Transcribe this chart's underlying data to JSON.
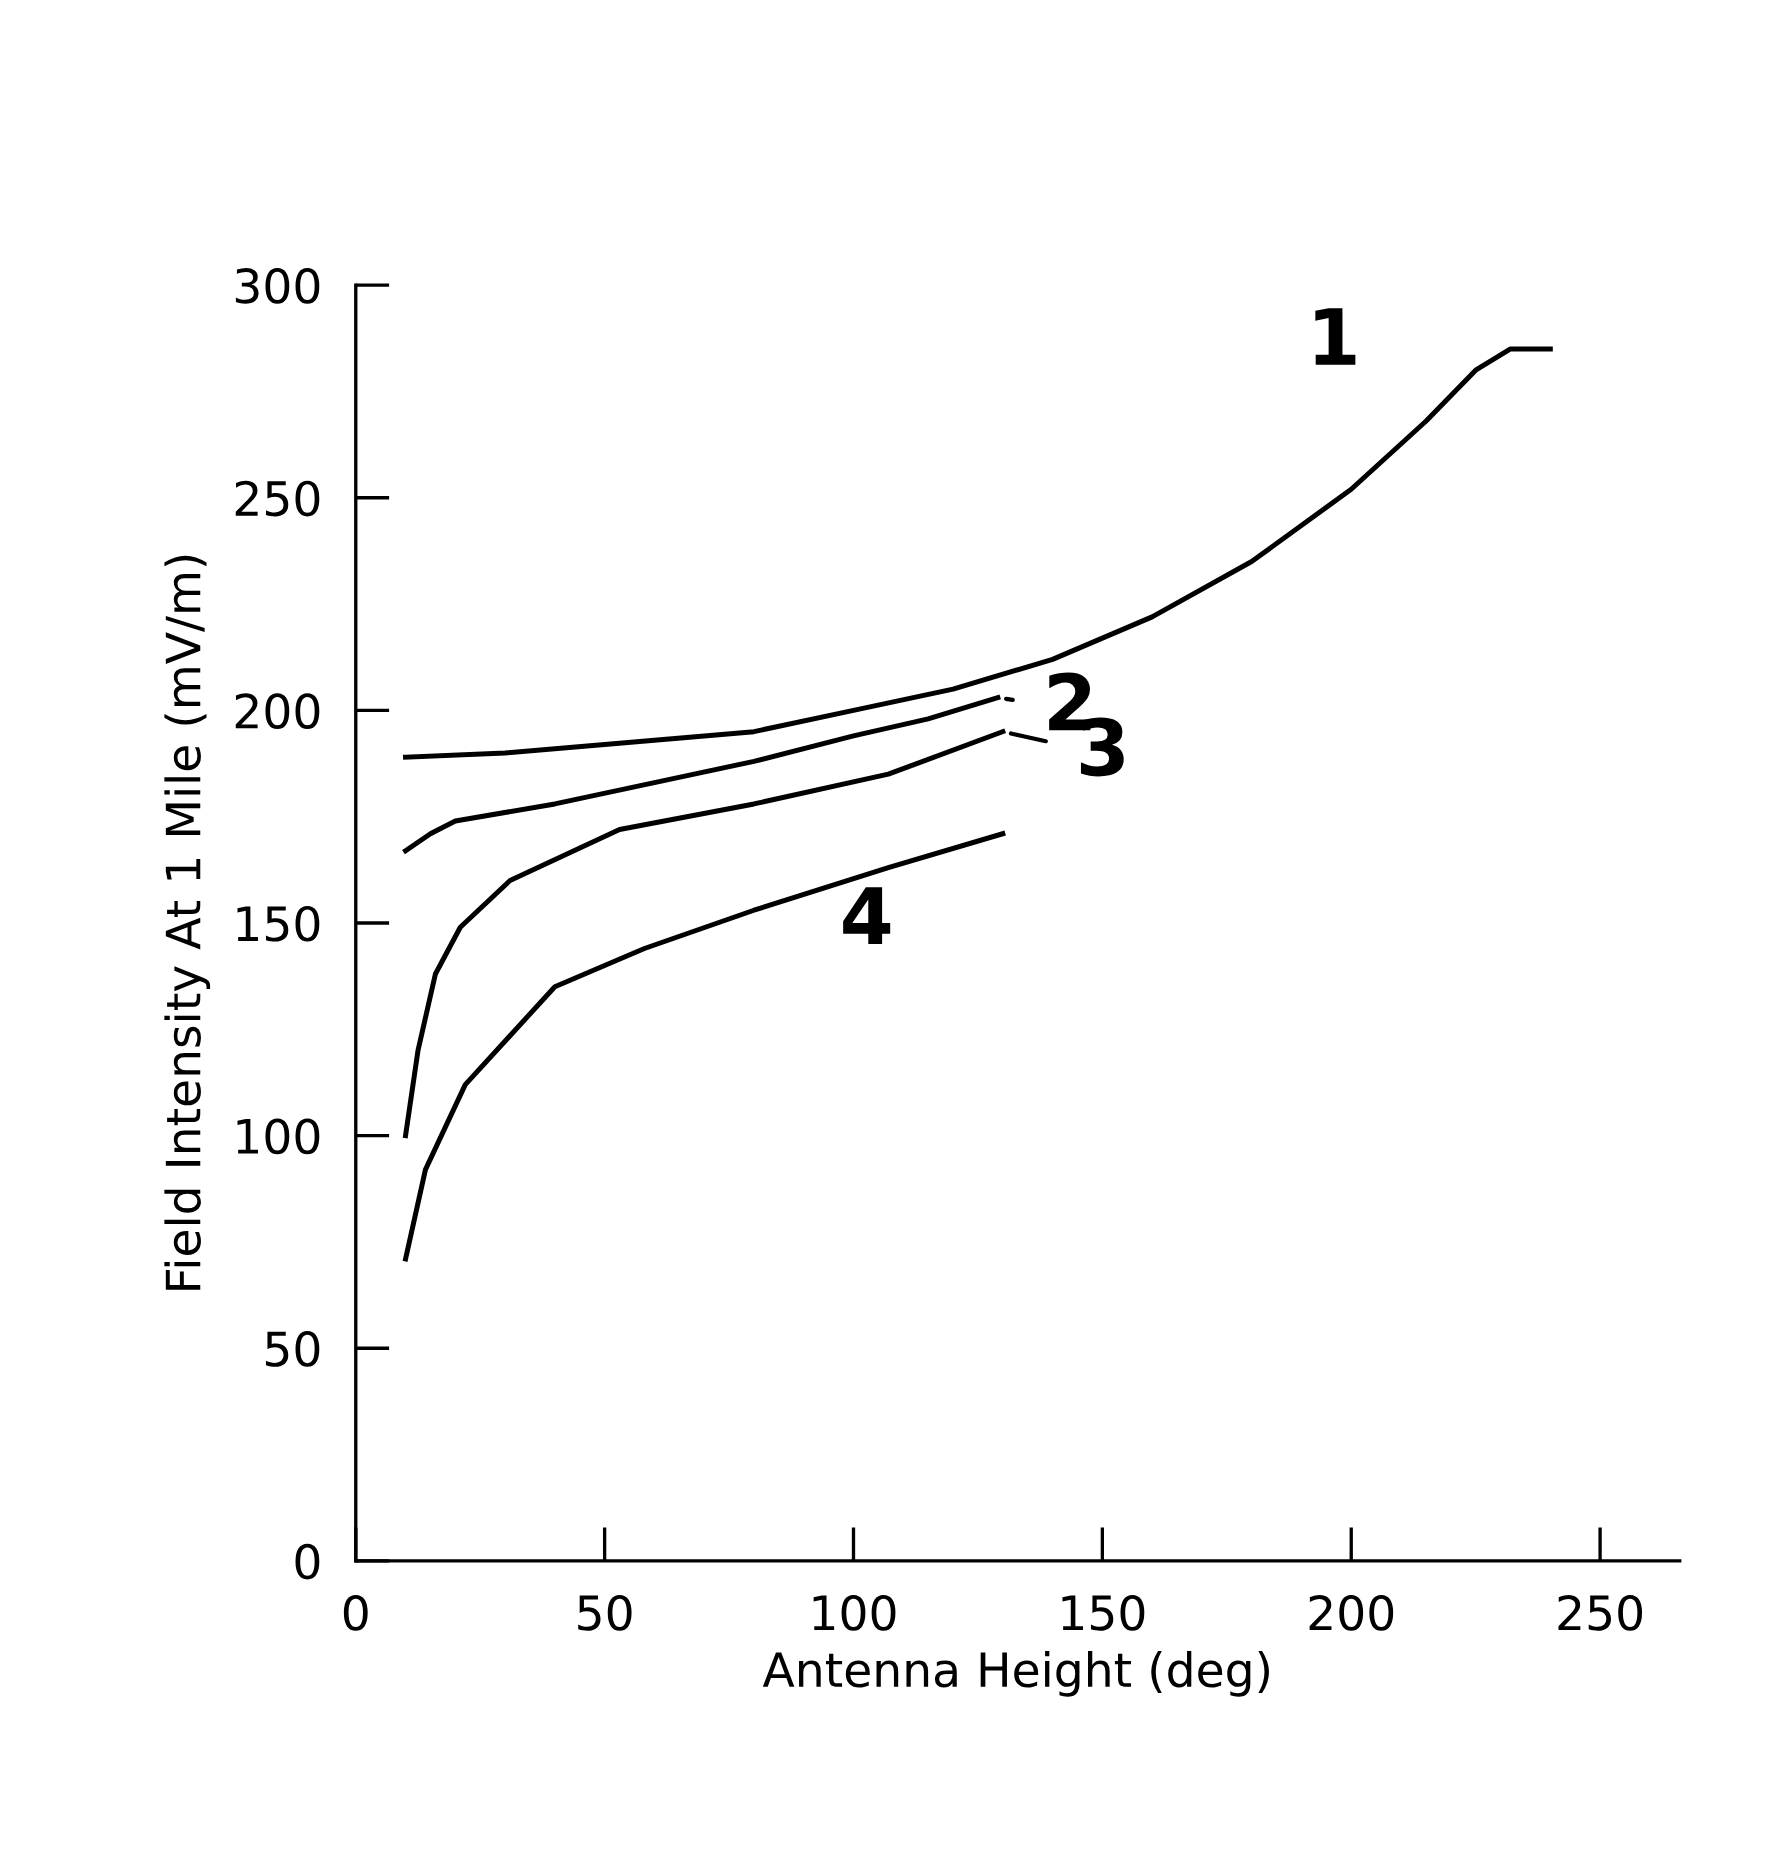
{
  "chart_data": {
    "type": "line",
    "xlabel": "Antenna Height (deg)",
    "ylabel": "Field Intensity At 1 Mile (mV/m)",
    "xlim": [
      0,
      266
    ],
    "ylim": [
      0,
      300
    ],
    "xticks": [
      0,
      50,
      100,
      150,
      200,
      250
    ],
    "yticks": [
      0,
      50,
      100,
      150,
      200,
      250,
      300
    ],
    "grid": false,
    "legend": "right",
    "marker": "none",
    "line_style": "solid",
    "series": [
      {
        "name": "1",
        "color": "#000000",
        "x": [
          10,
          30,
          50,
          80,
          100,
          120,
          140,
          160,
          180,
          200,
          215,
          225,
          232,
          240
        ],
        "values": [
          189,
          190,
          192,
          195,
          200,
          205,
          212,
          222,
          235,
          252,
          268,
          280,
          285,
          285
        ]
      },
      {
        "name": "2",
        "color": "#000000",
        "x": [
          10,
          15,
          20,
          40,
          60,
          80,
          100,
          115,
          129
        ],
        "values": [
          167,
          171,
          174,
          178,
          183,
          188,
          194,
          198,
          203
        ]
      },
      {
        "name": "3",
        "color": "#000000",
        "x": [
          10,
          12.5,
          16,
          21,
          31,
          53,
          80,
          107,
          130
        ],
        "values": [
          100,
          120,
          138,
          149,
          160,
          172,
          178,
          185,
          195
        ]
      },
      {
        "name": "4",
        "color": "#000000",
        "x": [
          10,
          14,
          22,
          40,
          58,
          80,
          107,
          130
        ],
        "values": [
          71,
          92,
          112,
          135,
          144,
          153,
          163,
          171
        ]
      }
    ]
  }
}
